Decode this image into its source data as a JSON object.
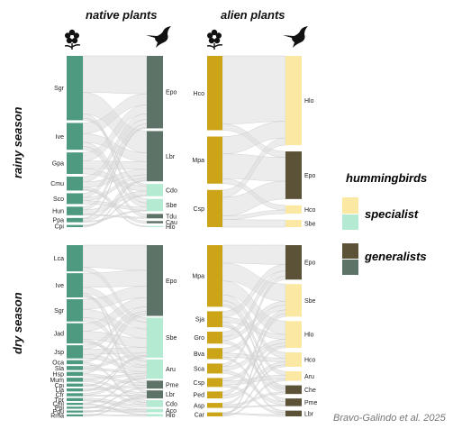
{
  "headers": {
    "native": "native plants",
    "alien": "alien plants"
  },
  "seasons": {
    "rainy": "rainy season",
    "dry": "dry season"
  },
  "legend": {
    "title": "hummingbirds",
    "specialist": "specialist",
    "generalists": "generalists"
  },
  "credit": "Bravo-Galindo et al. 2025",
  "colors": {
    "native_plant": "#4e9a80",
    "alien_plant": "#cca418",
    "native_generalist": "#5e7368",
    "native_specialist": "#b4ead2",
    "alien_generalist": "#5c5238",
    "alien_specialist": "#fbe8a2",
    "link": "#dcdcdc"
  },
  "icons": {
    "plant": "flower-icon",
    "bird": "hummingbird-icon"
  },
  "panels": [
    {
      "id": "rainy-native",
      "plants": [
        {
          "label": "Sgr",
          "weight": 60
        },
        {
          "label": "Ive",
          "weight": 25
        },
        {
          "label": "Gpa",
          "weight": 20
        },
        {
          "label": "Cmu",
          "weight": 13
        },
        {
          "label": "Sco",
          "weight": 10
        },
        {
          "label": "Hun",
          "weight": 8
        },
        {
          "label": "Ppa",
          "weight": 4
        },
        {
          "label": "Cpi",
          "weight": 2
        }
      ],
      "birds": [
        {
          "label": "Epo",
          "weight": 65,
          "type": "generalist"
        },
        {
          "label": "Lbr",
          "weight": 45,
          "type": "generalist"
        },
        {
          "label": "Cdo",
          "weight": 11,
          "type": "specialist"
        },
        {
          "label": "Sbe",
          "weight": 11,
          "type": "specialist"
        },
        {
          "label": "Tdu",
          "weight": 4,
          "type": "generalist"
        },
        {
          "label": "Cau",
          "weight": 2,
          "type": "generalist"
        },
        {
          "label": "Hlo",
          "weight": 1,
          "type": "specialist"
        }
      ],
      "links": [
        [
          "Sgr",
          "Epo",
          34
        ],
        [
          "Sgr",
          "Lbr",
          20
        ],
        [
          "Sgr",
          "Sbe",
          4
        ],
        [
          "Sgr",
          "Cdo",
          2
        ],
        [
          "Ive",
          "Epo",
          10
        ],
        [
          "Ive",
          "Lbr",
          8
        ],
        [
          "Ive",
          "Sbe",
          4
        ],
        [
          "Ive",
          "Tdu",
          3
        ],
        [
          "Gpa",
          "Epo",
          8
        ],
        [
          "Gpa",
          "Lbr",
          7
        ],
        [
          "Gpa",
          "Cdo",
          5
        ],
        [
          "Cmu",
          "Epo",
          5
        ],
        [
          "Cmu",
          "Lbr",
          5
        ],
        [
          "Cmu",
          "Cau",
          2
        ],
        [
          "Cmu",
          "Hlo",
          1
        ],
        [
          "Sco",
          "Epo",
          4
        ],
        [
          "Sco",
          "Lbr",
          3
        ],
        [
          "Sco",
          "Sbe",
          3
        ],
        [
          "Hun",
          "Epo",
          3
        ],
        [
          "Hun",
          "Cdo",
          4
        ],
        [
          "Hun",
          "Tdu",
          1
        ],
        [
          "Ppa",
          "Epo",
          1
        ],
        [
          "Ppa",
          "Lbr",
          2
        ],
        [
          "Ppa",
          "Sbe",
          1
        ],
        [
          "Cpi",
          "Cdo",
          1
        ],
        [
          "Cpi",
          "Lbr",
          1
        ]
      ]
    },
    {
      "id": "rainy-alien",
      "plants": [
        {
          "label": "Hco",
          "weight": 60
        },
        {
          "label": "Mpa",
          "weight": 38
        },
        {
          "label": "Csp",
          "weight": 30
        }
      ],
      "birds": [
        {
          "label": "Hlo",
          "weight": 75,
          "type": "specialist"
        },
        {
          "label": "Epo",
          "weight": 40,
          "type": "generalist"
        },
        {
          "label": "Hco",
          "weight": 7,
          "type": "specialist"
        },
        {
          "label": "Sbe",
          "weight": 6,
          "type": "specialist"
        }
      ],
      "links": [
        [
          "Hco",
          "Hlo",
          55
        ],
        [
          "Hco",
          "Epo",
          5
        ],
        [
          "Mpa",
          "Hlo",
          14
        ],
        [
          "Mpa",
          "Epo",
          20
        ],
        [
          "Mpa",
          "Hco",
          4
        ],
        [
          "Csp",
          "Hlo",
          6
        ],
        [
          "Csp",
          "Epo",
          15
        ],
        [
          "Csp",
          "Hco",
          3
        ],
        [
          "Csp",
          "Sbe",
          6
        ]
      ]
    },
    {
      "id": "dry-native",
      "plants": [
        {
          "label": "Lca",
          "weight": 26
        },
        {
          "label": "Ive",
          "weight": 24
        },
        {
          "label": "Sgr",
          "weight": 22
        },
        {
          "label": "Jad",
          "weight": 20
        },
        {
          "label": "Jsp",
          "weight": 13
        },
        {
          "label": "Oca",
          "weight": 4
        },
        {
          "label": "Sla",
          "weight": 4
        },
        {
          "label": "Hsp",
          "weight": 4
        },
        {
          "label": "Mum",
          "weight": 4
        },
        {
          "label": "Cpi",
          "weight": 3
        },
        {
          "label": "Lia",
          "weight": 3
        },
        {
          "label": "Cfr",
          "weight": 3
        },
        {
          "label": "Tpr",
          "weight": 3
        },
        {
          "label": "Cml",
          "weight": 2
        },
        {
          "label": "Ppi",
          "weight": 2
        },
        {
          "label": "Pgu",
          "weight": 2
        },
        {
          "label": "Rma",
          "weight": 2
        }
      ],
      "birds": [
        {
          "label": "Epo",
          "weight": 62,
          "type": "generalist"
        },
        {
          "label": "Sbe",
          "weight": 35,
          "type": "specialist"
        },
        {
          "label": "Aru",
          "weight": 17,
          "type": "specialist"
        },
        {
          "label": "Pme",
          "weight": 7,
          "type": "generalist"
        },
        {
          "label": "Lbr",
          "weight": 7,
          "type": "generalist"
        },
        {
          "label": "Cdo",
          "weight": 6,
          "type": "specialist"
        },
        {
          "label": "Aco",
          "weight": 3,
          "type": "specialist"
        },
        {
          "label": "Hlo",
          "weight": 2,
          "type": "specialist"
        }
      ],
      "links": [
        [
          "Lca",
          "Epo",
          22
        ],
        [
          "Lca",
          "Sbe",
          4
        ],
        [
          "Ive",
          "Epo",
          14
        ],
        [
          "Ive",
          "Sbe",
          6
        ],
        [
          "Ive",
          "Lbr",
          2
        ],
        [
          "Ive",
          "Aru",
          2
        ],
        [
          "Sgr",
          "Epo",
          10
        ],
        [
          "Sgr",
          "Sbe",
          8
        ],
        [
          "Sgr",
          "Aru",
          4
        ],
        [
          "Jad",
          "Epo",
          8
        ],
        [
          "Jad",
          "Sbe",
          8
        ],
        [
          "Jad",
          "Pme",
          2
        ],
        [
          "Jad",
          "Aru",
          2
        ],
        [
          "Jsp",
          "Epo",
          4
        ],
        [
          "Jsp",
          "Sbe",
          5
        ],
        [
          "Jsp",
          "Aru",
          4
        ],
        [
          "Oca",
          "Epo",
          2
        ],
        [
          "Oca",
          "Cdo",
          2
        ],
        [
          "Sla",
          "Sbe",
          2
        ],
        [
          "Sla",
          "Aru",
          2
        ],
        [
          "Hsp",
          "Epo",
          2
        ],
        [
          "Hsp",
          "Pme",
          2
        ],
        [
          "Mum",
          "Aru",
          2
        ],
        [
          "Mum",
          "Lbr",
          2
        ],
        [
          "Cpi",
          "Cdo",
          2
        ],
        [
          "Cpi",
          "Sbe",
          1
        ],
        [
          "Lia",
          "Pme",
          2
        ],
        [
          "Lia",
          "Sbe",
          1
        ],
        [
          "Cfr",
          "Aru",
          2
        ],
        [
          "Cfr",
          "Lbr",
          1
        ],
        [
          "Tpr",
          "Cdo",
          2
        ],
        [
          "Tpr",
          "Aco",
          1
        ],
        [
          "Cml",
          "Aru",
          1
        ],
        [
          "Cml",
          "Hlo",
          1
        ],
        [
          "Ppi",
          "Aco",
          1
        ],
        [
          "Ppi",
          "Pme",
          1
        ],
        [
          "Pgu",
          "Aco",
          1
        ],
        [
          "Pgu",
          "Lbr",
          1
        ],
        [
          "Rma",
          "Hlo",
          1
        ],
        [
          "Rma",
          "Lbr",
          1
        ]
      ]
    },
    {
      "id": "dry-alien",
      "plants": [
        {
          "label": "Mpa",
          "weight": 62
        },
        {
          "label": "Sja",
          "weight": 16
        },
        {
          "label": "Gro",
          "weight": 12
        },
        {
          "label": "Bva",
          "weight": 11
        },
        {
          "label": "Sca",
          "weight": 10
        },
        {
          "label": "Csp",
          "weight": 9
        },
        {
          "label": "Ped",
          "weight": 7
        },
        {
          "label": "Asp",
          "weight": 5
        },
        {
          "label": "Car",
          "weight": 4
        }
      ],
      "birds": [
        {
          "label": "Epo",
          "weight": 36,
          "type": "generalist"
        },
        {
          "label": "Sbe",
          "weight": 34,
          "type": "specialist"
        },
        {
          "label": "Hlo",
          "weight": 28,
          "type": "specialist"
        },
        {
          "label": "Hco",
          "weight": 15,
          "type": "specialist"
        },
        {
          "label": "Aru",
          "weight": 10,
          "type": "specialist"
        },
        {
          "label": "Che",
          "weight": 9,
          "type": "generalist"
        },
        {
          "label": "Pme",
          "weight": 8,
          "type": "generalist"
        },
        {
          "label": "Lbr",
          "weight": 6,
          "type": "generalist"
        }
      ],
      "links": [
        [
          "Mpa",
          "Epo",
          18
        ],
        [
          "Mpa",
          "Sbe",
          18
        ],
        [
          "Mpa",
          "Hlo",
          14
        ],
        [
          "Mpa",
          "Hco",
          6
        ],
        [
          "Mpa",
          "Aru",
          4
        ],
        [
          "Mpa",
          "Che",
          2
        ],
        [
          "Sja",
          "Epo",
          6
        ],
        [
          "Sja",
          "Hlo",
          5
        ],
        [
          "Sja",
          "Pme",
          3
        ],
        [
          "Sja",
          "Che",
          2
        ],
        [
          "Gro",
          "Epo",
          5
        ],
        [
          "Gro",
          "Sbe",
          4
        ],
        [
          "Gro",
          "Che",
          3
        ],
        [
          "Bva",
          "Sbe",
          5
        ],
        [
          "Bva",
          "Hco",
          4
        ],
        [
          "Bva",
          "Lbr",
          2
        ],
        [
          "Sca",
          "Epo",
          3
        ],
        [
          "Sca",
          "Hlo",
          4
        ],
        [
          "Sca",
          "Pme",
          3
        ],
        [
          "Csp",
          "Hlo",
          3
        ],
        [
          "Csp",
          "Aru",
          4
        ],
        [
          "Csp",
          "Lbr",
          2
        ],
        [
          "Ped",
          "Sbe",
          4
        ],
        [
          "Ped",
          "Hco",
          3
        ],
        [
          "Asp",
          "Hlo",
          2
        ],
        [
          "Asp",
          "Che",
          2
        ],
        [
          "Asp",
          "Pme",
          1
        ],
        [
          "Car",
          "Hco",
          2
        ],
        [
          "Car",
          "Lbr",
          2
        ],
        [
          "Car",
          "Sbe",
          3
        ],
        [
          "Car",
          "Aru",
          2
        ],
        [
          "Car",
          "Che",
          -1
        ]
      ]
    }
  ]
}
